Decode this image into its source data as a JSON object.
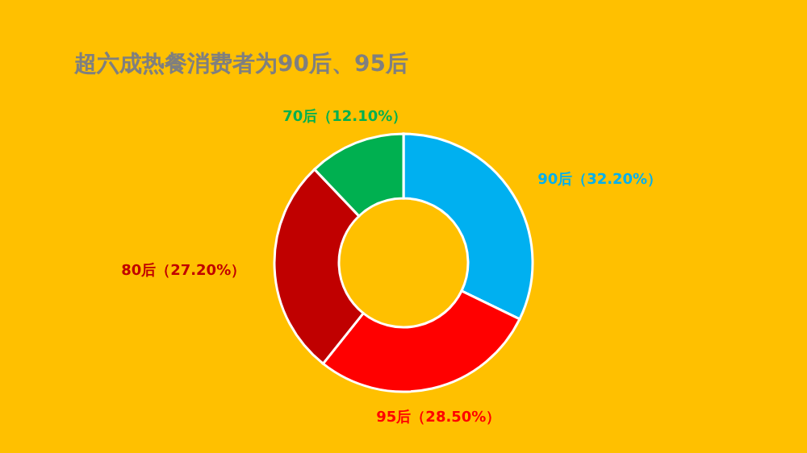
{
  "chart_data": {
    "type": "donut",
    "title": "超六成热餐消费者为90后、95后",
    "categories": [
      "90后",
      "95后",
      "80后",
      "70后"
    ],
    "values": [
      32.2,
      28.5,
      27.2,
      12.1
    ],
    "colors": [
      "#00b0f0",
      "#ff0000",
      "#c00000",
      "#00b050"
    ],
    "value_labels": [
      "（32.20%）",
      "（28.50%）",
      "（27.20%）",
      "（12.10%）"
    ],
    "legend": false
  }
}
